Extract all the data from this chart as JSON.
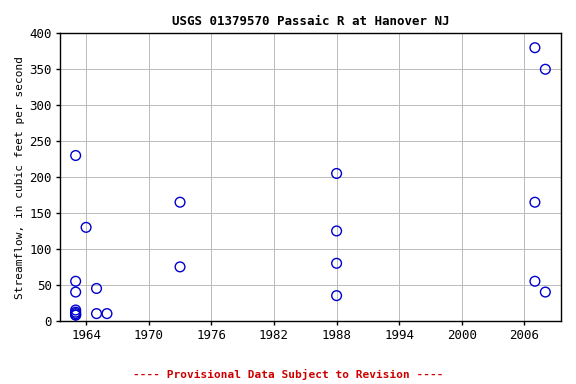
{
  "title": "USGS 01379570 Passaic R at Hanover NJ",
  "ylabel": "Streamflow, in cubic feet per second",
  "xlabel_ticks": [
    1964,
    1970,
    1976,
    1982,
    1988,
    1994,
    2000,
    2006
  ],
  "xlim": [
    1961.5,
    2009.5
  ],
  "ylim": [
    0,
    400
  ],
  "yticks": [
    0,
    50,
    100,
    150,
    200,
    250,
    300,
    350,
    400
  ],
  "grid_color": "#bbbbbb",
  "background_color": "#ffffff",
  "plot_bg_color": "#ffffff",
  "marker_color": "#0000cc",
  "marker_size": 7,
  "data_x": [
    1963,
    1963,
    1963,
    1963,
    1963,
    1963,
    1963,
    1963,
    1964,
    1965,
    1965,
    1966,
    1973,
    1973,
    1988,
    1988,
    1988,
    1988,
    2007,
    2008,
    2007,
    2007,
    2008
  ],
  "data_y": [
    230,
    55,
    40,
    15,
    12,
    10,
    8,
    8,
    130,
    45,
    10,
    10,
    165,
    75,
    205,
    125,
    80,
    35,
    380,
    350,
    165,
    55,
    40
  ],
  "footnote": "---- Provisional Data Subject to Revision ----",
  "footnote_color": "#cc0000",
  "title_fontsize": 9,
  "axis_fontsize": 8,
  "tick_fontsize": 9,
  "footnote_fontsize": 8
}
